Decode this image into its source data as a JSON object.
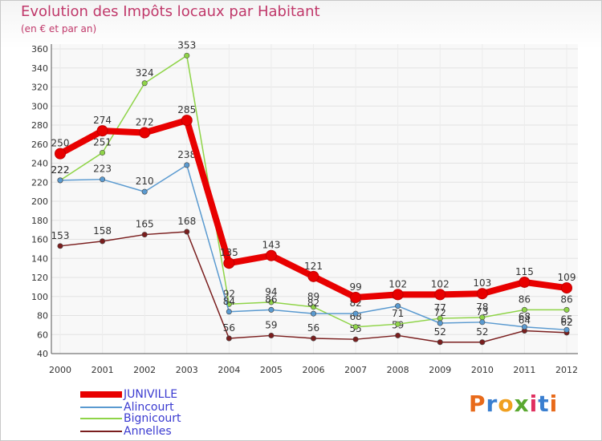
{
  "title": "Evolution des Impôts locaux par Habitant",
  "subtitle": "(en € et par an)",
  "logo": [
    "P",
    "r",
    "o",
    "x",
    "i",
    "t",
    "i"
  ],
  "logo_colors": [
    "#e86a1a",
    "#3a7fd0",
    "#f0a020",
    "#5aa830",
    "#e03060",
    "#3a7fd0",
    "#e86a1a"
  ],
  "chart_data": {
    "type": "line",
    "title": "Evolution des Impôts locaux par Habitant",
    "subtitle": "(en € et par an)",
    "xlabel": "",
    "ylabel": "",
    "ylim": [
      40,
      360
    ],
    "y_ticks": [
      40,
      60,
      80,
      100,
      120,
      140,
      160,
      180,
      200,
      220,
      240,
      260,
      280,
      300,
      320,
      340,
      360
    ],
    "categories": [
      "2000",
      "2001",
      "2002",
      "2003",
      "2004",
      "2005",
      "2006",
      "2007",
      "2008",
      "2009",
      "2010",
      "2011",
      "2012"
    ],
    "series": [
      {
        "name": "Annelles",
        "color": "#7a1e1e",
        "values": [
          153,
          158,
          165,
          168,
          56,
          59,
          56,
          55,
          59,
          52,
          52,
          64,
          62
        ],
        "labels": [
          "153",
          "158",
          "165",
          "168",
          "56",
          "59",
          "56",
          "55",
          "59",
          "52",
          "52",
          "64",
          "62"
        ]
      },
      {
        "name": "Bignicourt",
        "color": "#8fd448",
        "values": [
          222,
          251,
          324,
          353,
          92,
          94,
          89,
          68,
          71,
          77,
          78,
          86,
          86
        ],
        "labels": [
          "222",
          "251",
          "324",
          "353",
          "92",
          "94",
          "89",
          "68",
          "71",
          "77",
          "78",
          "86",
          "86"
        ]
      },
      {
        "name": "Alincourt",
        "color": "#5a9ad0",
        "values": [
          222,
          223,
          210,
          238,
          84,
          86,
          82,
          82,
          90,
          72,
          73,
          68,
          65
        ],
        "labels": [
          "222",
          "223",
          "210",
          "238",
          "84",
          "86",
          "82",
          "82",
          "90",
          "72",
          "73",
          "68",
          "65"
        ]
      },
      {
        "name": "JUNIVILLE",
        "color": "#e80000",
        "values": [
          250,
          274,
          272,
          285,
          135,
          143,
          121,
          99,
          102,
          102,
          103,
          115,
          109
        ],
        "labels": [
          "250",
          "274",
          "272",
          "285",
          "135",
          "143",
          "121",
          "99",
          "102",
          "102",
          "103",
          "115",
          "109"
        ]
      }
    ],
    "legend": [
      "JUNIVILLE",
      "Alincourt",
      "Bignicourt",
      "Annelles"
    ],
    "legend_position": "bottom-left"
  }
}
